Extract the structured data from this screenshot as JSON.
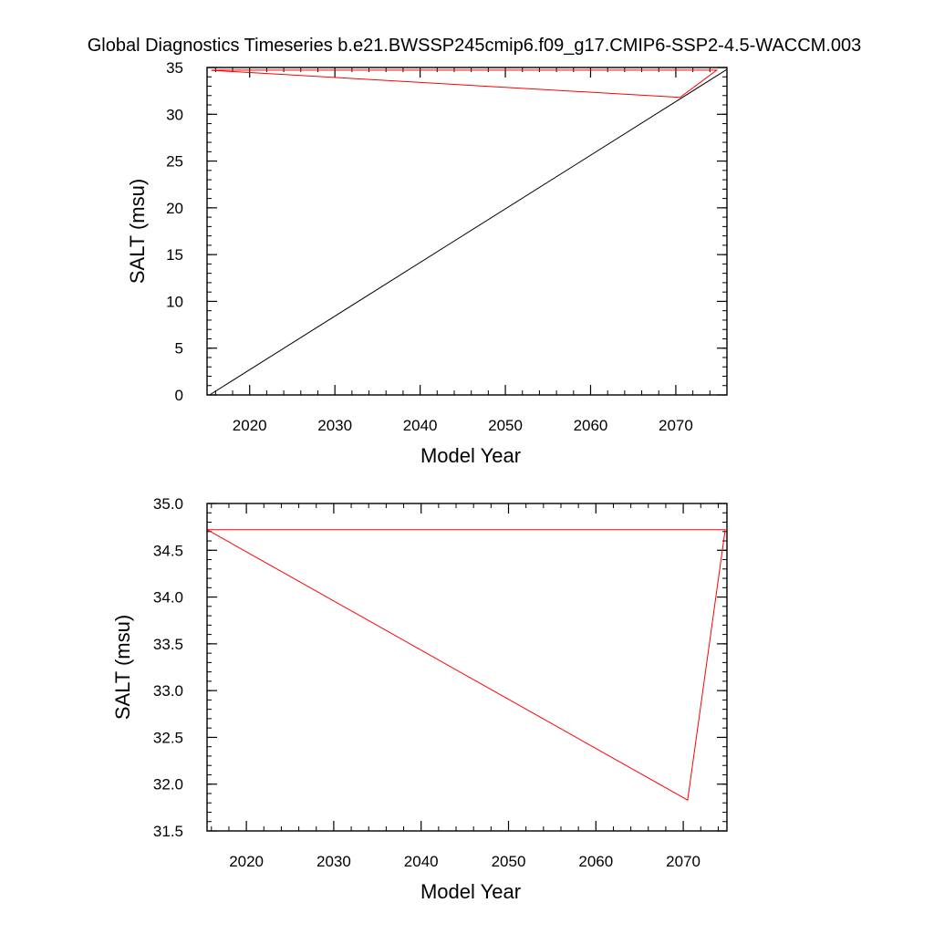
{
  "title": "Global Diagnostics Timeseries b.e21.BWSSP245cmip6.f09_g17.CMIP6-SSP2-4.5-WACCM.003",
  "chart_data": [
    {
      "type": "line",
      "xlabel": "Model Year",
      "ylabel": "SALT (msu)",
      "xlim": [
        2015,
        2076
      ],
      "ylim": [
        0,
        35
      ],
      "x_ticks": [
        2020,
        2030,
        2040,
        2050,
        2060,
        2070
      ],
      "y_ticks": [
        0,
        5,
        10,
        15,
        20,
        25,
        30,
        35
      ],
      "y_tick_labels": [
        "0",
        "5",
        "10",
        "15",
        "20",
        "25",
        "30",
        "35"
      ],
      "grid": false,
      "series": [
        {
          "color": "#000000",
          "x": [
            2015.3,
            2076
          ],
          "y": [
            0,
            34.8
          ]
        },
        {
          "color": "#ff0000",
          "x": [
            2015.5,
            2070.5,
            2074.8,
            2015.5
          ],
          "y": [
            34.7,
            31.8,
            34.72,
            34.72
          ]
        }
      ]
    },
    {
      "type": "line",
      "xlabel": "Model Year",
      "ylabel": "SALT (msu)",
      "xlim": [
        2015.5,
        2075
      ],
      "ylim": [
        31.5,
        35
      ],
      "x_ticks": [
        2020,
        2030,
        2040,
        2050,
        2060,
        2070
      ],
      "y_ticks": [
        31.5,
        32.0,
        32.5,
        33.0,
        33.5,
        34.0,
        34.5,
        35.0
      ],
      "y_tick_labels": [
        "31.5",
        "32.0",
        "32.5",
        "33.0",
        "33.5",
        "34.0",
        "34.5",
        "35.0"
      ],
      "grid": false,
      "series": [
        {
          "color": "#ff0000",
          "x": [
            2015.5,
            2070.5,
            2074.8,
            2015.5
          ],
          "y": [
            34.72,
            31.83,
            34.72,
            34.72
          ]
        }
      ]
    }
  ]
}
